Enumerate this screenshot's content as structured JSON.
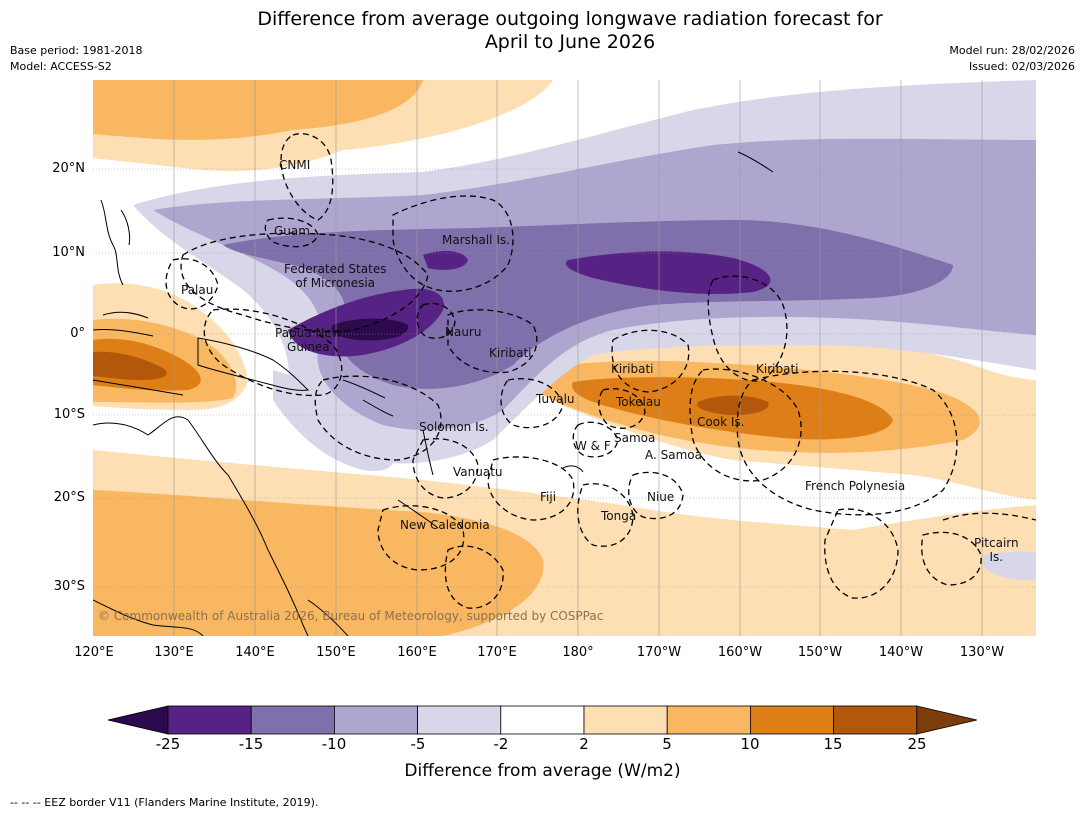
{
  "title": {
    "line1": "Difference from average outgoing longwave radiation forecast for",
    "line2": "April to June 2026"
  },
  "meta": {
    "base_period": "Base period: 1981-2018",
    "model": "Model: ACCESS-S2",
    "model_run": "Model run: 28/02/2026",
    "issued": "Issued: 02/03/2026"
  },
  "axes": {
    "lat_labels": [
      "20°N",
      "10°N",
      "0°",
      "10°S",
      "20°S",
      "30°S"
    ],
    "lon_labels": [
      "120°E",
      "130°E",
      "140°E",
      "150°E",
      "160°E",
      "170°E",
      "180°",
      "170°W",
      "160°W",
      "150°W",
      "140°W",
      "130°W"
    ]
  },
  "places": {
    "cnmi": "CNMI",
    "guam": "Guam",
    "marshall": "Marshall Is.",
    "fsm": [
      "Federated States",
      "of Micronesia"
    ],
    "palau": "Palau",
    "png": [
      "Papua New",
      "Guinea"
    ],
    "nauru": "Nauru",
    "kiribati_w": "Kiribati",
    "kiribati_c": "Kiribati",
    "kiribati_e": "Kiribati",
    "tuvalu": "Tuvalu",
    "tokelau": "Tokelau",
    "cook": "Cook Is.",
    "solomon": "Solomon Is.",
    "wf": "W & F",
    "samoa": "Samoa",
    "asamoa": "A. Samoa",
    "vanuatu": "Vanuatu",
    "fiji": "Fiji",
    "niue": "Niue",
    "tonga": "Tonga",
    "frenchpoly": "French Polynesia",
    "newcal": "New Caledonia",
    "pitcairn": [
      "Pitcairn",
      "Is."
    ]
  },
  "copyright": "© Commonwealth of Australia 2026, Bureau of Meteorology, supported by COSPPac",
  "colorbar": {
    "title": "Difference from average (W/m2)",
    "ticks": [
      "-25",
      "-15",
      "-10",
      "-5",
      "-2",
      "2",
      "5",
      "10",
      "15",
      "25"
    ],
    "colors": [
      "#2d0a4e",
      "#562385",
      "#7f6fab",
      "#aea6cf",
      "#d8d7e9",
      "#ffffff",
      "#fddfb3",
      "#f9b762",
      "#de7e17",
      "#b3580a",
      "#7b3d0c"
    ]
  },
  "footnote": "--  --  -- EEZ border V11 (Flanders Marine Institute, 2019)."
}
